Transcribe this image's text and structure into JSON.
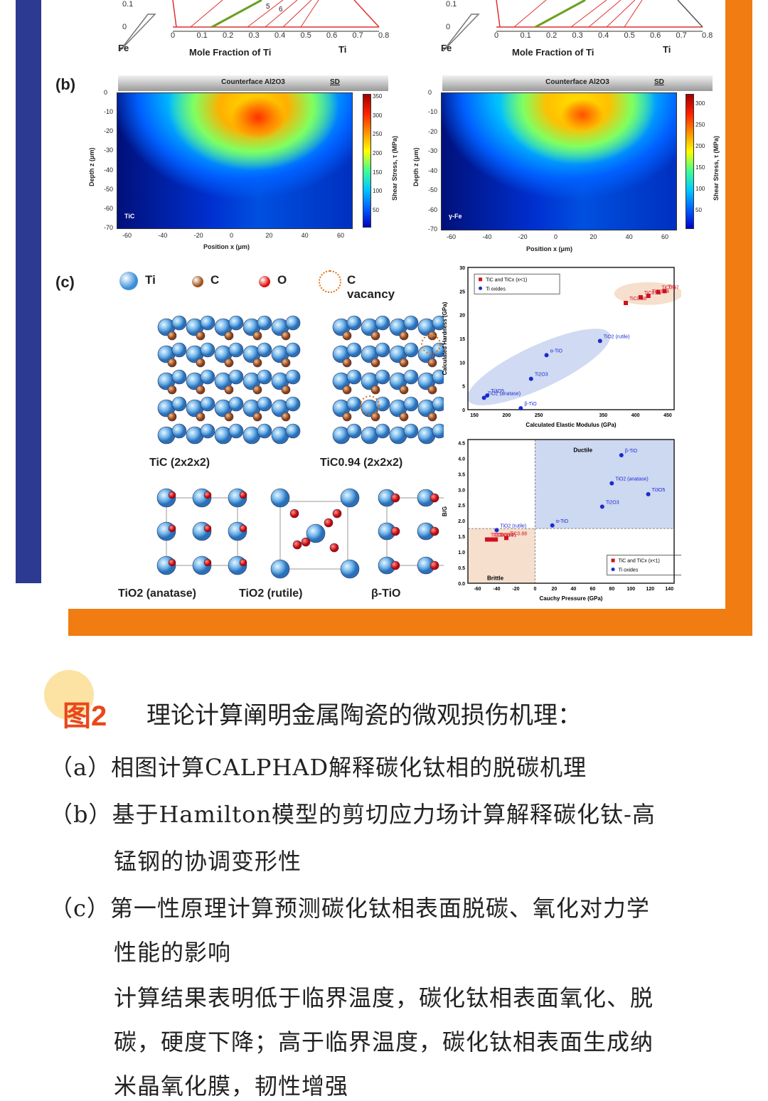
{
  "panel_a": {
    "tick_y": "0.1",
    "tick_y0": "0",
    "xticks": [
      "0",
      "0.1",
      "0.2",
      "0.3",
      "0.4",
      "0.5",
      "0.6",
      "0.7",
      "0.8"
    ],
    "left_el": "Fe",
    "right_el": "Ti",
    "xlabel": "Mole Fraction of Ti",
    "markers": [
      "5",
      "6"
    ]
  },
  "panel_b": {
    "label": "(b)",
    "counterface": "Counterface Al2O3",
    "sd": "SD",
    "ylabel": "Depth z (μm)",
    "xlabel": "Position x (μm)",
    "cbar_label": "Shear Stress, τ (MPa)",
    "yticks": [
      "0",
      "-10",
      "-20",
      "-30",
      "-40",
      "-50",
      "-60",
      "-70"
    ],
    "xticks": [
      "-60",
      "-40",
      "-20",
      "0",
      "20",
      "40",
      "60"
    ],
    "left": {
      "name": "TiC",
      "cbar_ticks": [
        "350",
        "300",
        "250",
        "200",
        "150",
        "100",
        "50"
      ]
    },
    "right": {
      "name": "γ-Fe",
      "cbar_ticks": [
        "300",
        "250",
        "200",
        "150",
        "100",
        "50"
      ]
    }
  },
  "panel_c": {
    "label": "(c)",
    "legend": [
      {
        "name": "Ti",
        "color": "#3a8fd8"
      },
      {
        "name": "C",
        "color": "#a0501a"
      },
      {
        "name": "O",
        "color": "#e01010"
      },
      {
        "name": "C vacancy",
        "color": "#e07010"
      }
    ],
    "structures": [
      "TiC (2x2x2)",
      "TiC0.94 (2x2x2)",
      "TiO2 (anatase)",
      "TiO2 (rutile)",
      "β-TiO"
    ]
  },
  "chart_data": [
    {
      "type": "scatter",
      "xlabel": "Calculated Elastic Modulus (GPa)",
      "ylabel": "Calculated Hardness (GPa)",
      "xticks": [
        "150",
        "200",
        "250",
        "350",
        "400",
        "450"
      ],
      "yticks": [
        "0",
        "5",
        "10",
        "15",
        "20",
        "25",
        "30"
      ],
      "legend": [
        "TiC and TiCx (x<1)",
        "Ti oxides"
      ],
      "series": [
        {
          "name": "TiC and TiCx (x<1)",
          "color": "#d01020",
          "points": [
            {
              "label": "TiC",
              "x": 445,
              "y": 25
            },
            {
              "label": "TiC0.97",
              "x": 435,
              "y": 24.8
            },
            {
              "label": "TiC0.94",
              "x": 420,
              "y": 24
            },
            {
              "label": "TiC0.91",
              "x": 408,
              "y": 23.7
            },
            {
              "label": "TiC0.88",
              "x": 385,
              "y": 22.5
            }
          ]
        },
        {
          "name": "Ti oxides",
          "color": "#1a2ad0",
          "points": [
            {
              "label": "TiO2 (rutile)",
              "x": 345,
              "y": 14.5
            },
            {
              "label": "α-TiO",
              "x": 262,
              "y": 11.5
            },
            {
              "label": "Ti2O3",
              "x": 238,
              "y": 6.5
            },
            {
              "label": "Ti3O5",
              "x": 170,
              "y": 3
            },
            {
              "label": "TiO2 (anatase)",
              "x": 165,
              "y": 2.5
            },
            {
              "label": "β-TiO",
              "x": 222,
              "y": 0.3
            }
          ]
        }
      ]
    },
    {
      "type": "scatter",
      "xlabel": "Cauchy Pressure (GPa)",
      "ylabel": "B/G",
      "xticks": [
        "-60",
        "-40",
        "-20",
        "0",
        "20",
        "40",
        "60",
        "80",
        "100",
        "120",
        "140"
      ],
      "yticks": [
        "0.0",
        "0.5",
        "1.0",
        "1.5",
        "2.0",
        "2.5",
        "3.0",
        "3.5",
        "4.0",
        "4.5"
      ],
      "regions": [
        "Ductile",
        "Brittle"
      ],
      "legend": [
        "TiC and TiCx (x<1)",
        "Ti oxides"
      ],
      "series": [
        {
          "name": "TiC and TiCx (x<1)",
          "color": "#d01020",
          "points": [
            {
              "label": "TiC",
              "x": -50,
              "y": 1.4
            },
            {
              "label": "TiC0.97",
              "x": -47,
              "y": 1.4
            },
            {
              "label": "TiC0.94",
              "x": -44,
              "y": 1.4
            },
            {
              "label": "TiC0.91",
              "x": -41,
              "y": 1.4
            },
            {
              "label": "TiC0.88",
              "x": -30,
              "y": 1.45
            }
          ]
        },
        {
          "name": "Ti oxides",
          "color": "#1a2ad0",
          "points": [
            {
              "label": "TiO2 (rutile)",
              "x": -40,
              "y": 1.7
            },
            {
              "label": "α-TiO",
              "x": 18,
              "y": 1.85
            },
            {
              "label": "Ti2O3",
              "x": 70,
              "y": 2.45
            },
            {
              "label": "TiO2 (anatase)",
              "x": 80,
              "y": 3.2
            },
            {
              "label": "Ti3O5",
              "x": 118,
              "y": 2.85
            },
            {
              "label": "β-TiO",
              "x": 90,
              "y": 4.1
            }
          ]
        }
      ]
    }
  ],
  "caption": {
    "fig": "图2",
    "title": "理论计算阐明金属陶瓷的微观损伤机理：",
    "line_a": "（a）相图计算CALPHAD解释碳化钛相的脱碳机理",
    "line_b1": "（b）基于Hamilton模型的剪切应力场计算解释碳化钛-高",
    "line_b2": "锰钢的协调变形性",
    "line_c1": "（c）第一性原理计算预测碳化钛相表面脱碳、氧化对力学",
    "line_c2": "性能的影响",
    "line_d1": "计算结果表明低于临界温度，碳化钛相表面氧化、脱",
    "line_d2": "碳，硬度下降；高于临界温度，碳化钛相表面生成纳",
    "line_d3": "米晶氧化膜，韧性增强"
  }
}
